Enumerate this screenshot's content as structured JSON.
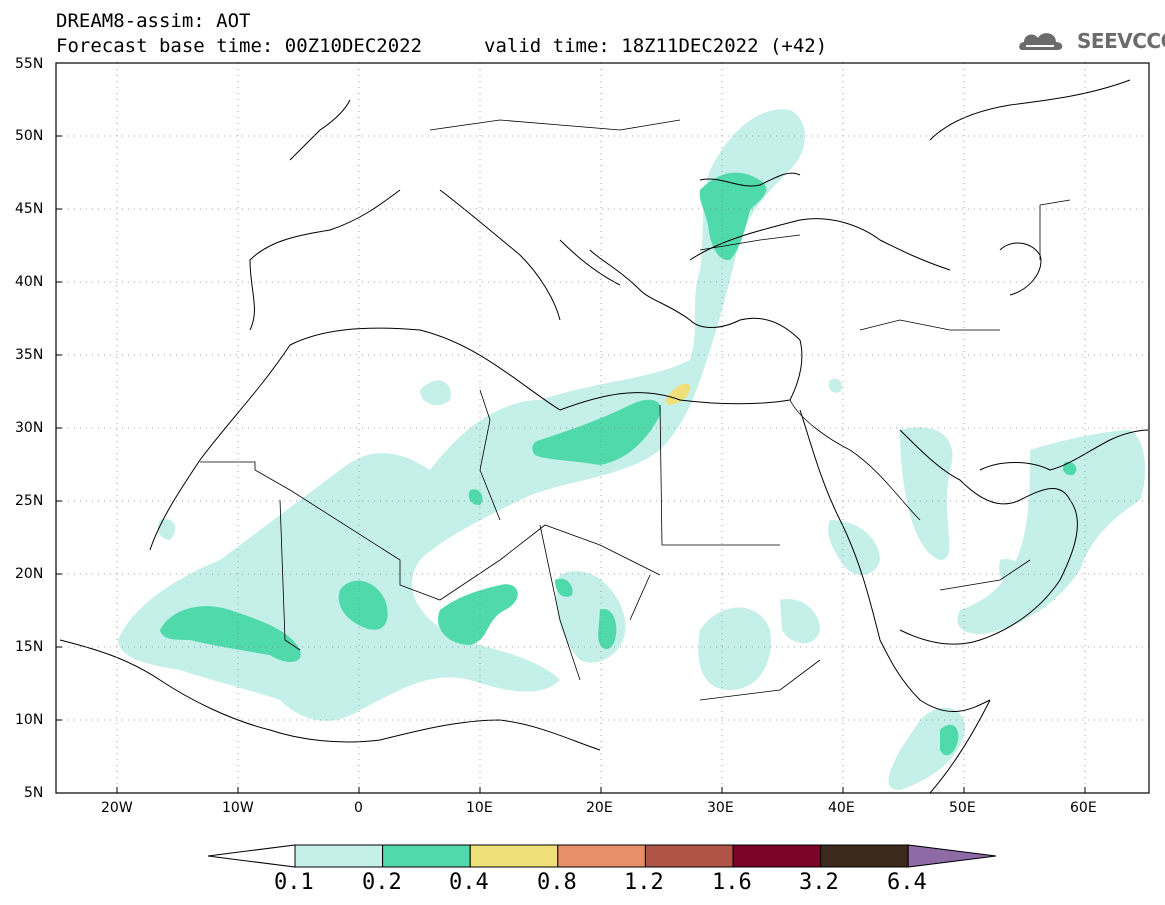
{
  "title": {
    "line1": "DREAM8-assim: AOT",
    "line2": "Forecast base time: 00Z10DEC2022",
    "valid": "valid time: 18Z11DEC2022 (+42)"
  },
  "logo": {
    "text": "SEEVCCC",
    "icon": "cloud-icon"
  },
  "map_data": {
    "projection": "lat-lon",
    "lon_range": [
      -25,
      65
    ],
    "lat_range": [
      5,
      55
    ],
    "lat_ticks": [
      "55N",
      "50N",
      "45N",
      "40N",
      "35N",
      "30N",
      "25N",
      "20N",
      "15N",
      "10N",
      "5N"
    ],
    "lon_ticks": [
      "20W",
      "10W",
      "0",
      "10E",
      "20E",
      "30E",
      "40E",
      "50E",
      "60E"
    ],
    "variable": "AOT"
  },
  "colorbar": {
    "labels": [
      "0.1",
      "0.2",
      "0.4",
      "0.8",
      "1.2",
      "1.6",
      "3.2",
      "6.4"
    ],
    "colors": [
      "#ffffff",
      "#c5f0ea",
      "#50d9aa",
      "#f0e07a",
      "#e8906a",
      "#b05448",
      "#7c0428",
      "#3b2a1c",
      "#8e6aa6"
    ]
  }
}
